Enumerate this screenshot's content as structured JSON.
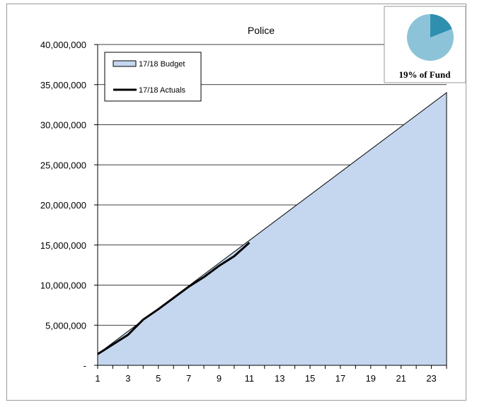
{
  "chart_data": {
    "type": "area",
    "title": "Police",
    "xlabel": "",
    "ylabel": "",
    "x_ticks": [
      "1",
      "3",
      "5",
      "7",
      "9",
      "11",
      "13",
      "15",
      "17",
      "19",
      "21",
      "23"
    ],
    "y_ticks": [
      {
        "value": 0,
        "label": "-"
      },
      {
        "value": 5000000,
        "label": "5,000,000"
      },
      {
        "value": 10000000,
        "label": "10,000,000"
      },
      {
        "value": 15000000,
        "label": "15,000,000"
      },
      {
        "value": 20000000,
        "label": "20,000,000"
      },
      {
        "value": 25000000,
        "label": "25,000,000"
      },
      {
        "value": 30000000,
        "label": "30,000,000"
      },
      {
        "value": 35000000,
        "label": "35,000,000"
      },
      {
        "value": 40000000,
        "label": "40,000,000"
      }
    ],
    "xlim": [
      1,
      24
    ],
    "ylim": [
      0,
      40000000
    ],
    "grid": "horizontal",
    "legend_position": "top-left",
    "series": [
      {
        "name": "17/18 Budget",
        "type": "area",
        "color": "#c5d7ef",
        "x": [
          1,
          24
        ],
        "values": [
          1400000,
          34000000
        ]
      },
      {
        "name": "17/18 Actuals",
        "type": "line",
        "color": "#000000",
        "x": [
          1,
          2,
          3,
          4,
          5,
          6,
          7,
          8,
          9,
          10,
          11
        ],
        "values": [
          1400000,
          2600000,
          3800000,
          5700000,
          7000000,
          8400000,
          9800000,
          11000000,
          12400000,
          13600000,
          15300000
        ]
      }
    ],
    "inset_pie": {
      "label": "19% of Fund",
      "share": 0.19,
      "share_color": "#2e8fae",
      "rest_color": "#8cc3d8"
    }
  }
}
